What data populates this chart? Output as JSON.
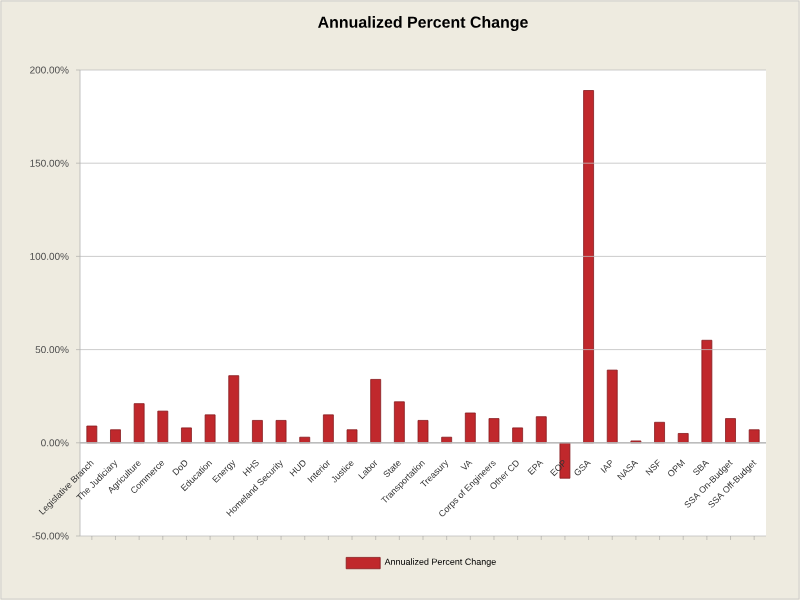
{
  "chart_data": {
    "type": "bar",
    "title": "Annualized Percent Change",
    "categories": [
      "Legislative Branch",
      "The Judiciary",
      "Agriculture",
      "Commerce",
      "DoD",
      "Education",
      "Energy",
      "HHS",
      "Homeland Security",
      "HUD",
      "Interior",
      "Justice",
      "Labor",
      "State",
      "Transportation",
      "Treasury",
      "VA",
      "Corps of Engineers",
      "Other CD",
      "EPA",
      "EOP",
      "GSA",
      "IAP",
      "NASA",
      "NSF",
      "OPM",
      "SBA",
      "SSA On-Budget",
      "SSA Off-Budget"
    ],
    "series": [
      {
        "name": "Annualized Percent Change",
        "color": "#c0282c",
        "values": [
          9,
          7,
          21,
          17,
          8,
          15,
          36,
          12,
          12,
          3,
          15,
          7,
          34,
          22,
          12,
          3,
          16,
          13,
          8,
          14,
          -19,
          189,
          39,
          1,
          11,
          5,
          55,
          13,
          7
        ]
      }
    ],
    "ylim": [
      -50,
      200
    ],
    "yticks": [
      {
        "value": -50,
        "label": "-50.00%"
      },
      {
        "value": 0,
        "label": "0.00%"
      },
      {
        "value": 50,
        "label": "50.00%"
      },
      {
        "value": 100,
        "label": "100.00%"
      },
      {
        "value": 150,
        "label": "150.00%"
      },
      {
        "value": 200,
        "label": "200.00%"
      }
    ],
    "grid": "y",
    "legend": "bottom"
  }
}
